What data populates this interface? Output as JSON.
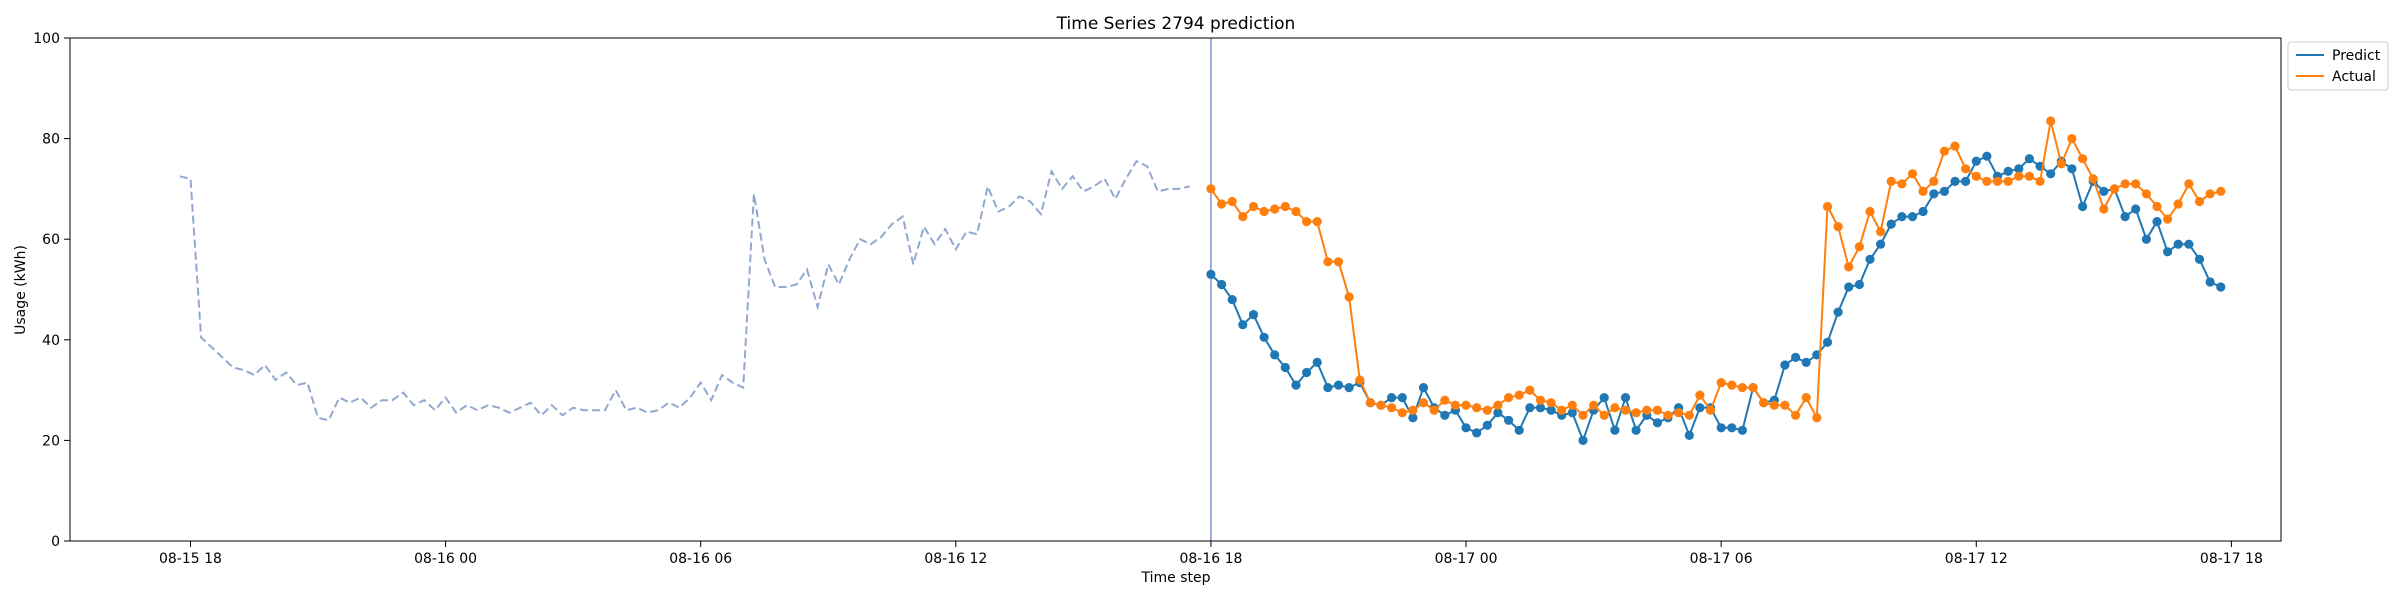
{
  "chart_data": {
    "type": "line",
    "title": "Time Series 2794 prediction",
    "xlabel": "Time step",
    "ylabel": "Usage (kWh)",
    "ylim": [
      0,
      100
    ],
    "yticks": [
      0,
      20,
      40,
      60,
      80,
      100
    ],
    "xlim": [
      "2023-08-15 15:10",
      "2023-08-17 19:10"
    ],
    "xticks": [
      {
        "t": "2023-08-15 18:00",
        "label": "08-15 18"
      },
      {
        "t": "2023-08-16 00:00",
        "label": "08-16 00"
      },
      {
        "t": "2023-08-16 06:00",
        "label": "08-16 06"
      },
      {
        "t": "2023-08-16 12:00",
        "label": "08-16 12"
      },
      {
        "t": "2023-08-16 18:00",
        "label": "08-16 18"
      },
      {
        "t": "2023-08-17 00:00",
        "label": "08-17 00"
      },
      {
        "t": "2023-08-17 06:00",
        "label": "08-17 06"
      },
      {
        "t": "2023-08-17 12:00",
        "label": "08-17 12"
      },
      {
        "t": "2023-08-17 18:00",
        "label": "08-17 18"
      }
    ],
    "forecast_start": "2023-08-16 18:00",
    "grid": false,
    "legend_position": "outside top-right",
    "history": {
      "style": "dashed",
      "color": "#92a8cf",
      "start": "2023-08-15 17:45",
      "interval_minutes": 15,
      "values": [
        72.5,
        72.0,
        40.5,
        38.5,
        36.5,
        34.5,
        34.0,
        33.0,
        35.0,
        32.0,
        33.5,
        31.0,
        31.5,
        24.5,
        24.0,
        28.5,
        27.5,
        28.5,
        26.5,
        28.0,
        28.0,
        29.5,
        27.0,
        28.0,
        26.0,
        28.5,
        25.5,
        27.0,
        26.0,
        27.0,
        26.5,
        25.5,
        26.5,
        27.5,
        25.0,
        27.0,
        25.0,
        26.5,
        26.0,
        26.0,
        26.0,
        30.0,
        26.0,
        26.5,
        25.5,
        26.0,
        27.5,
        26.5,
        28.5,
        31.5,
        28.0,
        33.0,
        31.5,
        30.5,
        69.0,
        56.0,
        50.5,
        50.5,
        51.0,
        54.0,
        46.5,
        55.0,
        51.0,
        56.0,
        60.0,
        59.0,
        60.5,
        63.0,
        64.5,
        55.0,
        62.5,
        59.0,
        62.0,
        58.0,
        61.5,
        61.0,
        70.5,
        65.5,
        66.5,
        68.5,
        67.5,
        65.0,
        73.5,
        70.0,
        72.5,
        69.5,
        70.5,
        72.0,
        68.0,
        72.0,
        75.5,
        74.5,
        69.5,
        70.0,
        70.0,
        70.5
      ]
    },
    "series": [
      {
        "name": "Predict",
        "color": "#1f77b4",
        "start": "2023-08-16 18:00",
        "interval_minutes": 15,
        "values": [
          53.0,
          51.0,
          48.0,
          43.0,
          45.0,
          40.5,
          37.0,
          34.5,
          31.0,
          33.5,
          35.5,
          30.5,
          31.0,
          30.5,
          31.5,
          27.5,
          27.0,
          28.5,
          28.5,
          24.5,
          30.5,
          26.5,
          25.0,
          26.0,
          22.5,
          21.5,
          23.0,
          25.5,
          24.0,
          22.0,
          26.5,
          26.5,
          26.0,
          25.0,
          25.5,
          20.0,
          26.0,
          28.5,
          22.0,
          28.5,
          22.0,
          25.0,
          23.5,
          24.5,
          26.5,
          21.0,
          26.5,
          26.5,
          22.5,
          22.5,
          22.0,
          30.5,
          27.5,
          28.0,
          35.0,
          36.5,
          35.5,
          37.0,
          39.5,
          45.5,
          50.5,
          51.0,
          56.0,
          59.0,
          63.0,
          64.5,
          64.5,
          65.5,
          69.0,
          69.5,
          71.5,
          71.5,
          75.5,
          76.5,
          72.5,
          73.5,
          74.0,
          76.0,
          74.5,
          73.0,
          75.5,
          74.0,
          66.5,
          71.5,
          69.5,
          70.0,
          64.5,
          66.0,
          60.0,
          63.5,
          57.5,
          59.0,
          59.0,
          56.0,
          51.5,
          50.5
        ]
      },
      {
        "name": "Actual",
        "color": "#ff7f0e",
        "start": "2023-08-16 18:00",
        "interval_minutes": 15,
        "values": [
          70.0,
          67.0,
          67.5,
          64.5,
          66.5,
          65.5,
          66.0,
          66.5,
          65.5,
          63.5,
          63.5,
          55.5,
          55.5,
          48.5,
          32.0,
          27.5,
          27.0,
          26.5,
          25.5,
          26.0,
          27.5,
          26.0,
          28.0,
          27.0,
          27.0,
          26.5,
          26.0,
          27.0,
          28.5,
          29.0,
          30.0,
          28.0,
          27.5,
          26.0,
          27.0,
          25.0,
          27.0,
          25.0,
          26.5,
          26.0,
          25.5,
          26.0,
          26.0,
          25.0,
          25.5,
          25.0,
          29.0,
          26.0,
          31.5,
          31.0,
          30.5,
          30.5,
          27.5,
          27.0,
          27.0,
          25.0,
          28.5,
          24.5,
          66.5,
          62.5,
          54.5,
          58.5,
          65.5,
          61.5,
          71.5,
          71.0,
          73.0,
          69.5,
          71.5,
          77.5,
          78.5,
          74.0,
          72.5,
          71.5,
          71.5,
          71.5,
          72.5,
          72.5,
          71.5,
          83.5,
          75.0,
          80.0,
          76.0,
          72.0,
          66.0,
          70.0,
          71.0,
          71.0,
          69.0,
          66.5,
          64.0,
          67.0,
          71.0,
          67.5,
          69.0,
          69.5
        ]
      }
    ]
  }
}
